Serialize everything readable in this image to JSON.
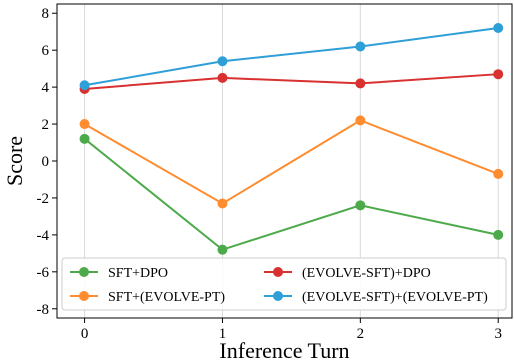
{
  "chart_data": {
    "type": "line",
    "title": "",
    "xlabel": "Inference Turn",
    "ylabel": "Score",
    "x": [
      0,
      1,
      2,
      3
    ],
    "xticks": [
      "0",
      "1",
      "2",
      "3"
    ],
    "yticks": [
      "8",
      "6",
      "4",
      "2",
      "0",
      "-2",
      "-4",
      "-6",
      "-8"
    ],
    "xlim": [
      -0.2,
      3.1
    ],
    "ylim": [
      -8.5,
      8.5
    ],
    "grid": "vertical",
    "legend_placement": "lower-center",
    "series": [
      {
        "name": "SFT+DPO",
        "color": "#4daa4b",
        "values": [
          1.2,
          -4.8,
          -2.4,
          -4.0
        ]
      },
      {
        "name": "SFT+(EVOLVE-PT)",
        "color": "#ff8c2e",
        "values": [
          2.0,
          -2.3,
          2.2,
          -0.7
        ]
      },
      {
        "name": "(EVOLVE-SFT)+DPO",
        "color": "#d93030",
        "values": [
          3.9,
          4.5,
          4.2,
          4.7
        ]
      },
      {
        "name": "(EVOLVE-SFT)+(EVOLVE-PT)",
        "color": "#2f9fd8",
        "values": [
          4.1,
          5.4,
          6.2,
          7.2
        ]
      }
    ]
  }
}
